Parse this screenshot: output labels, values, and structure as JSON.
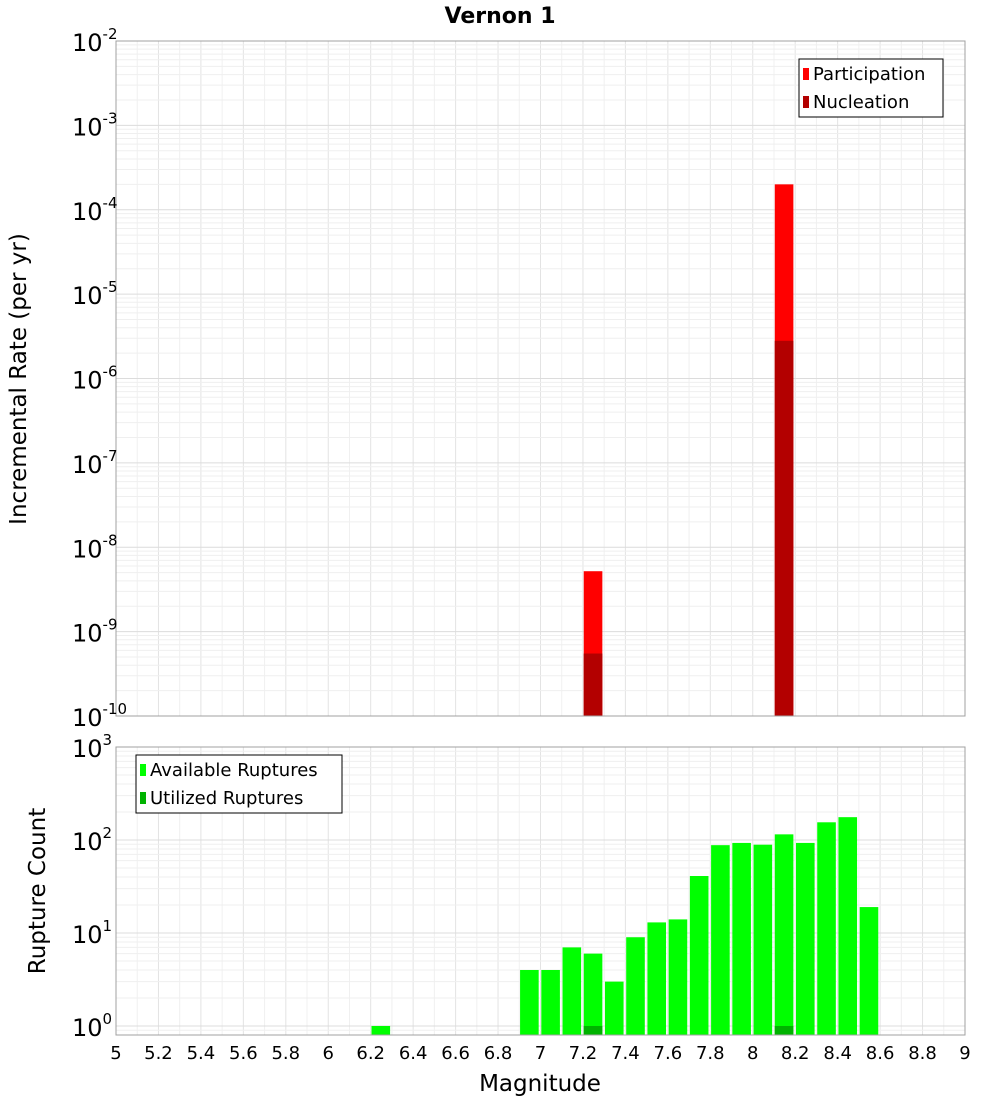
{
  "chart_data": [
    {
      "type": "bar",
      "title": "Vernon 1",
      "xlabel": "",
      "ylabel": "Incremental Rate (per yr)",
      "yscale": "log",
      "xlim": [
        5,
        9
      ],
      "ylim": [
        1e-10,
        0.01
      ],
      "ytick_labels": [
        {
          "base": "10",
          "exp": "-10",
          "value": 1e-10
        },
        {
          "base": "10",
          "exp": "-9",
          "value": 1e-09
        },
        {
          "base": "10",
          "exp": "-8",
          "value": 1e-08
        },
        {
          "base": "10",
          "exp": "-7",
          "value": 1e-07
        },
        {
          "base": "10",
          "exp": "-6",
          "value": 1e-06
        },
        {
          "base": "10",
          "exp": "-5",
          "value": 1e-05
        },
        {
          "base": "10",
          "exp": "-4",
          "value": 0.0001
        },
        {
          "base": "10",
          "exp": "-3",
          "value": 0.001
        },
        {
          "base": "10",
          "exp": "-2",
          "value": 0.01
        }
      ],
      "legend_position": "top-right",
      "grid": true,
      "series": [
        {
          "name": "Participation",
          "color": "#ff0000",
          "x": [
            7.25,
            8.15
          ],
          "values": [
            5.2e-09,
            0.0002
          ]
        },
        {
          "name": "Nucleation",
          "color": "#b30000",
          "x": [
            7.25,
            8.15
          ],
          "values": [
            5.5e-10,
            2.8e-06
          ]
        }
      ]
    },
    {
      "type": "bar",
      "title": "",
      "xlabel": "Magnitude",
      "ylabel": "Rupture Count",
      "yscale": "log",
      "xlim": [
        5,
        9
      ],
      "ylim": [
        0.8,
        1000
      ],
      "ytick_labels": [
        {
          "base": "10",
          "exp": "0",
          "value": 1
        },
        {
          "base": "10",
          "exp": "1",
          "value": 10
        },
        {
          "base": "10",
          "exp": "2",
          "value": 100
        },
        {
          "base": "10",
          "exp": "3",
          "value": 1000
        }
      ],
      "xtick_labels": [
        "5",
        "5.2",
        "5.4",
        "5.6",
        "5.8",
        "6",
        "6.2",
        "6.4",
        "6.6",
        "6.8",
        "7",
        "7.2",
        "7.4",
        "7.6",
        "7.8",
        "8",
        "8.2",
        "8.4",
        "8.6",
        "8.8",
        "9"
      ],
      "xticks": [
        5,
        5.2,
        5.4,
        5.6,
        5.8,
        6,
        6.2,
        6.4,
        6.6,
        6.8,
        7,
        7.2,
        7.4,
        7.6,
        7.8,
        8,
        8.2,
        8.4,
        8.6,
        8.8,
        9
      ],
      "legend_position": "top-left",
      "grid": true,
      "series": [
        {
          "name": "Available Ruptures",
          "color": "#00ff00",
          "x": [
            6.25,
            6.95,
            7.05,
            7.15,
            7.25,
            7.35,
            7.45,
            7.55,
            7.65,
            7.75,
            7.85,
            7.95,
            8.05,
            8.15,
            8.25,
            8.35,
            8.45,
            8.55
          ],
          "values": [
            1,
            4,
            4,
            7,
            6,
            3,
            9,
            13,
            14,
            41,
            88,
            93,
            89,
            115,
            93,
            155,
            176,
            19
          ]
        },
        {
          "name": "Utilized Ruptures",
          "color": "#00b300",
          "x": [
            7.25,
            8.15
          ],
          "values": [
            1,
            1
          ]
        }
      ]
    }
  ]
}
